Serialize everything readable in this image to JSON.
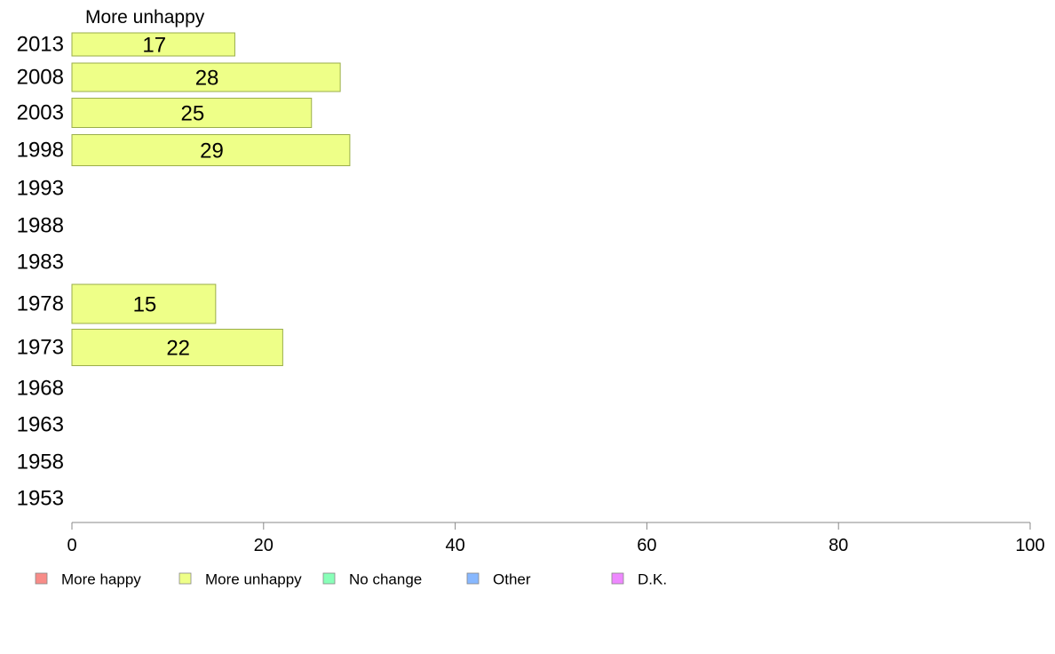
{
  "chart_data": {
    "type": "bar",
    "orientation": "horizontal",
    "title": "More unhappy",
    "categories": [
      "2013",
      "2008",
      "2003",
      "1998",
      "1993",
      "1988",
      "1983",
      "1978",
      "1973",
      "1968",
      "1963",
      "1958",
      "1953"
    ],
    "series": [
      {
        "name": "More unhappy",
        "color": "#eeff88",
        "values": [
          17,
          28,
          25,
          29,
          null,
          null,
          null,
          15,
          22,
          null,
          null,
          null,
          null
        ]
      }
    ],
    "xlim": [
      0,
      100
    ],
    "xticks": [
      0,
      20,
      40,
      60,
      80,
      100
    ],
    "xlabel": "",
    "ylabel": "",
    "grid": false,
    "legend_position": "bottom",
    "legend": [
      {
        "label": "More happy",
        "color": "#f88c88"
      },
      {
        "label": "More unhappy",
        "color": "#eeff88"
      },
      {
        "label": "No change",
        "color": "#88ffb8"
      },
      {
        "label": "Other",
        "color": "#88b8ff"
      },
      {
        "label": "D.K.",
        "color": "#ee88ff"
      }
    ]
  }
}
